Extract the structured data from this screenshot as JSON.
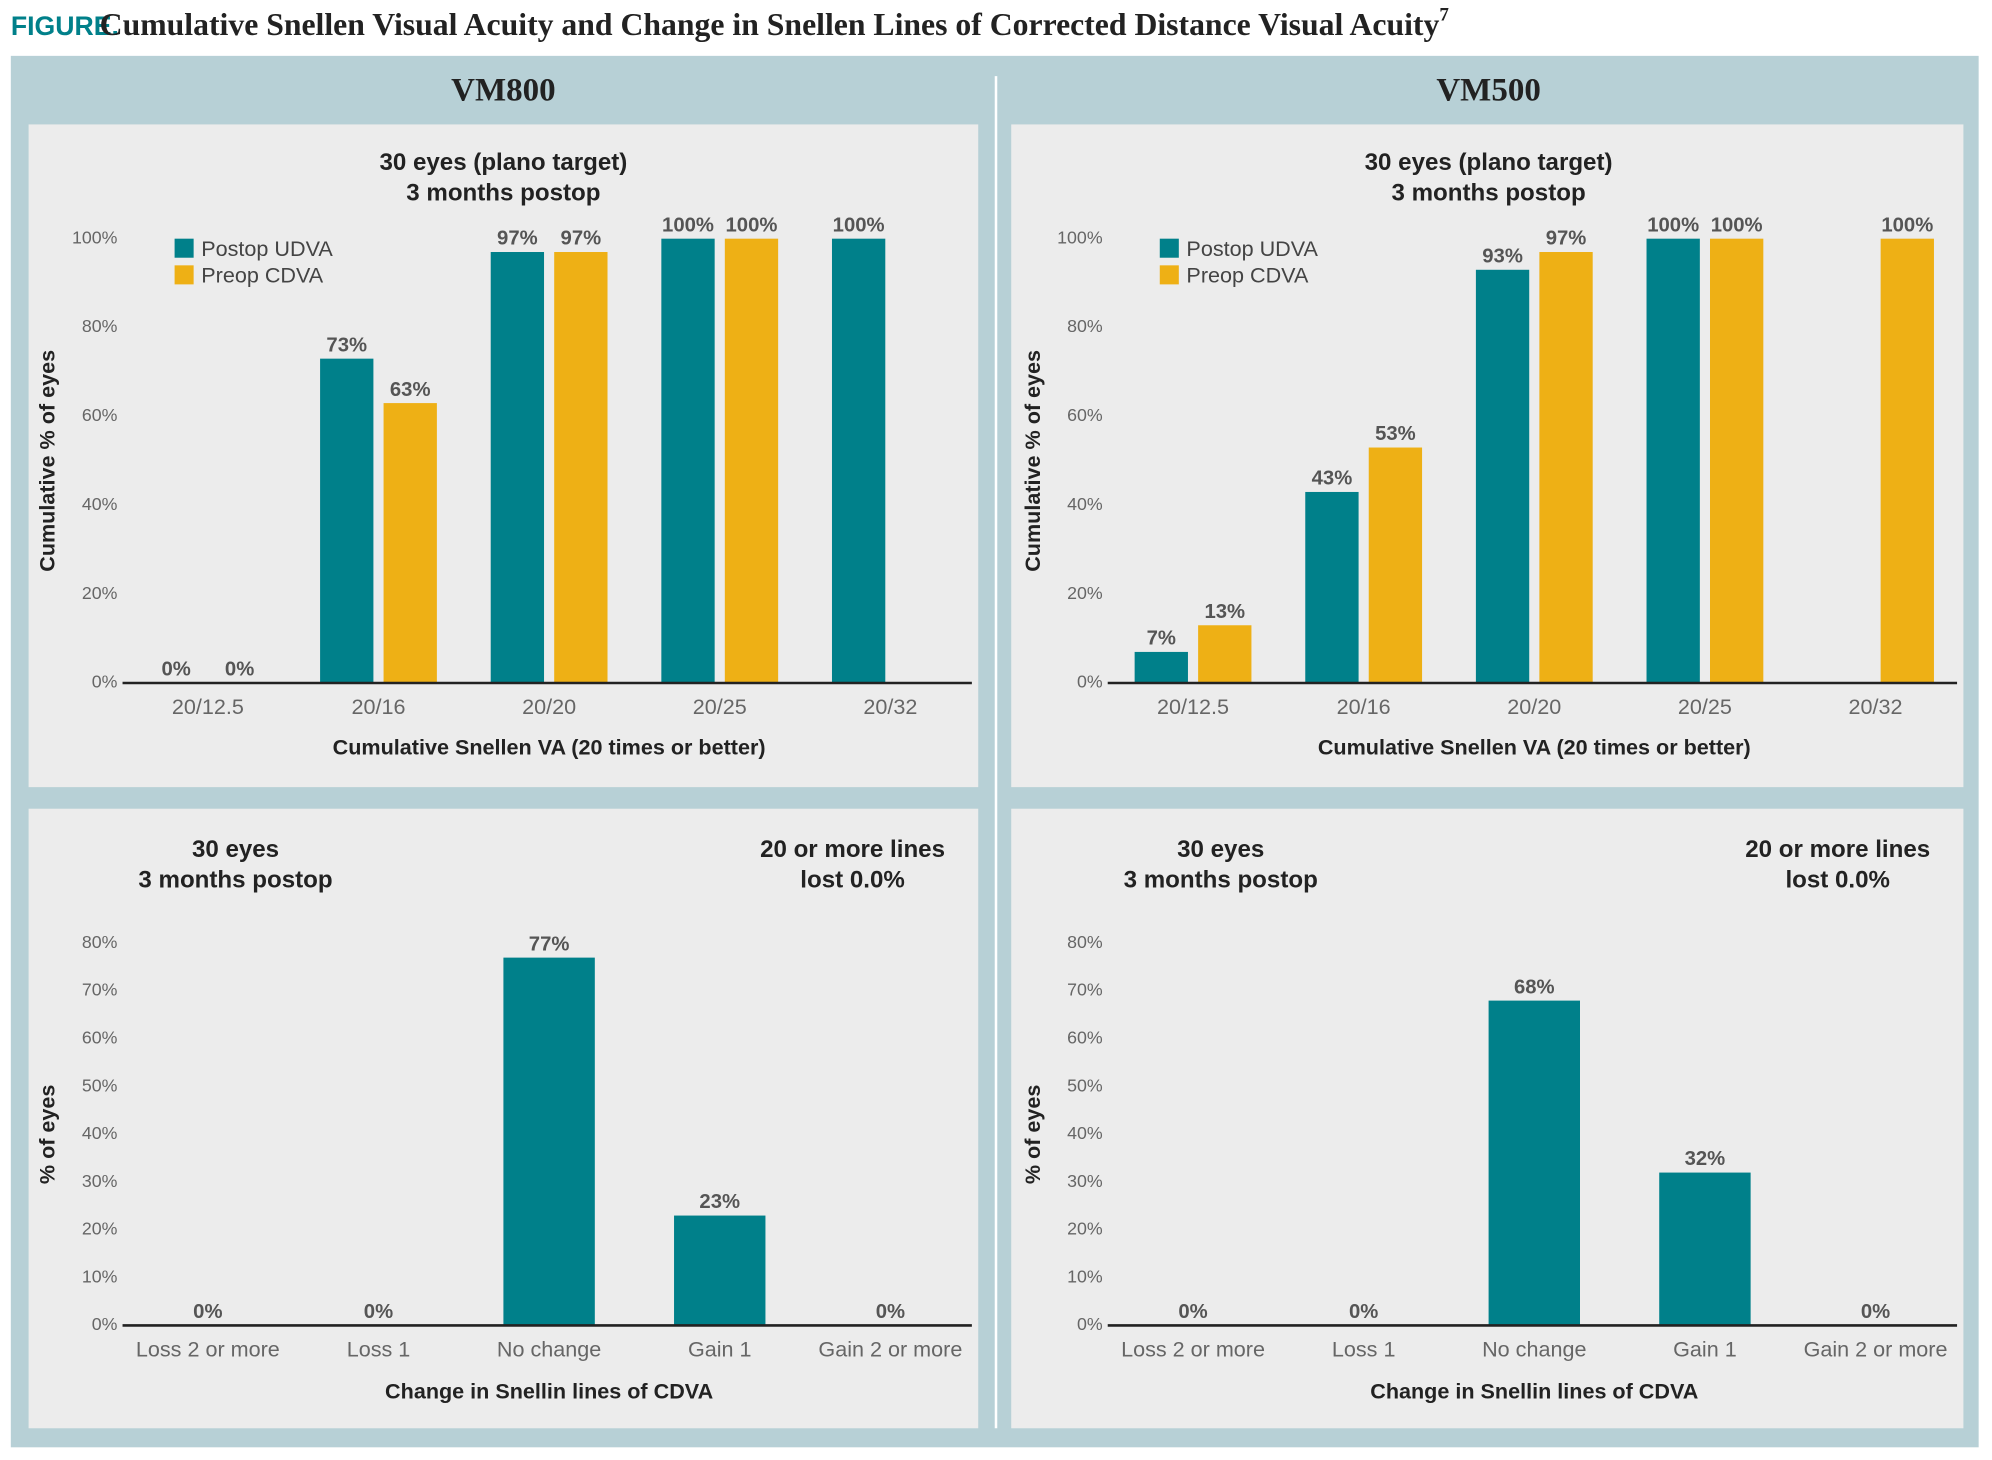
{
  "figure_label": "FIGURE.",
  "title": "Cumulative Snellen Visual Acuity and Change in Snellen Lines of Corrected Distance Visual Acuity",
  "title_ref": "7",
  "panels": [
    "VM800",
    "VM500"
  ],
  "chart_data": [
    {
      "type": "bar",
      "title": [
        "30 eyes (plano target)",
        "3 months postop"
      ],
      "x_label": "Cumulative Snellen VA (20 times or better)",
      "y_label": "Cumulative % of eyes",
      "categories": [
        "20/12.5",
        "20/16",
        "20/20",
        "20/25",
        "20/32"
      ],
      "series": [
        {
          "name": "Postop UDVA",
          "color": "#00808a",
          "values": [
            0,
            73,
            97,
            100,
            100
          ],
          "value_labels": [
            "0%",
            "73%",
            "97%",
            "100%",
            "100%"
          ]
        },
        {
          "name": "Preop CDVA",
          "color": "#eeb015",
          "values": [
            0,
            63,
            97,
            100,
            null
          ],
          "value_labels": [
            "0%",
            "63%",
            "97%",
            "100%",
            null
          ]
        }
      ],
      "ylim": [
        0,
        100
      ],
      "yticks": [
        {
          "value": 0,
          "label": "0%"
        },
        {
          "value": 20,
          "label": "20%"
        },
        {
          "value": 40,
          "label": "40%"
        },
        {
          "value": 60,
          "label": "60%"
        },
        {
          "value": 80,
          "label": "80%"
        },
        {
          "value": 100,
          "label": "100%"
        }
      ],
      "legend": "upper left"
    },
    {
      "type": "bar",
      "title": [
        "30 eyes (plano target)",
        "3 months postop"
      ],
      "x_label": "Cumulative Snellen VA (20 times or better)",
      "y_label": "Cumulative % of eyes",
      "categories": [
        "20/12.5",
        "20/16",
        "20/20",
        "20/25",
        "20/32"
      ],
      "series": [
        {
          "name": "Postop UDVA",
          "color": "#00808a",
          "values": [
            7,
            43,
            93,
            100,
            null
          ],
          "value_labels": [
            "7%",
            "43%",
            "93%",
            "100%",
            null
          ]
        },
        {
          "name": "Preop CDVA",
          "color": "#eeb015",
          "values": [
            13,
            53,
            97,
            100,
            100
          ],
          "value_labels": [
            "13%",
            "53%",
            "97%",
            "100%",
            "100%"
          ]
        }
      ],
      "ylim": [
        0,
        100
      ],
      "yticks": [
        {
          "value": 0,
          "label": "0%"
        },
        {
          "value": 20,
          "label": "20%"
        },
        {
          "value": 40,
          "label": "40%"
        },
        {
          "value": 60,
          "label": "60%"
        },
        {
          "value": 80,
          "label": "80%"
        },
        {
          "value": 100,
          "label": "100%"
        }
      ],
      "legend": "upper left"
    },
    {
      "type": "bar",
      "title": [
        "30 eyes",
        "3 months postop"
      ],
      "annotation": [
        "20 or more lines",
        "lost 0.0%"
      ],
      "x_label": "Change in Snellin lines of CDVA",
      "y_label": "% of eyes",
      "categories": [
        "Loss 2 or more",
        "Loss 1",
        "No change",
        "Gain 1",
        "Gain 2 or more"
      ],
      "values": [
        0,
        0,
        77,
        23,
        0
      ],
      "value_labels": [
        "0%",
        "0%",
        "77%",
        "23%",
        "0%"
      ],
      "color": "#00808a",
      "ylim": [
        0,
        80
      ],
      "yticks": [
        {
          "value": 0,
          "label": "0%"
        },
        {
          "value": 10,
          "label": "10%"
        },
        {
          "value": 20,
          "label": "20%"
        },
        {
          "value": 30,
          "label": "30%"
        },
        {
          "value": 40,
          "label": "40%"
        },
        {
          "value": 50,
          "label": "50%"
        },
        {
          "value": 60,
          "label": "60%"
        },
        {
          "value": 70,
          "label": "70%"
        },
        {
          "value": 80,
          "label": "80%"
        }
      ]
    },
    {
      "type": "bar",
      "title": [
        "30 eyes",
        "3 months postop"
      ],
      "annotation": [
        "20 or more lines",
        "lost 0.0%"
      ],
      "x_label": "Change in Snellin lines of CDVA",
      "y_label": "% of eyes",
      "categories": [
        "Loss 2 or more",
        "Loss 1",
        "No change",
        "Gain 1",
        "Gain 2 or more"
      ],
      "values": [
        0,
        0,
        68,
        32,
        0
      ],
      "value_labels": [
        "0%",
        "0%",
        "68%",
        "32%",
        "0%"
      ],
      "color": "#00808a",
      "ylim": [
        0,
        80
      ],
      "yticks": [
        {
          "value": 0,
          "label": "0%"
        },
        {
          "value": 10,
          "label": "10%"
        },
        {
          "value": 20,
          "label": "20%"
        },
        {
          "value": 30,
          "label": "30%"
        },
        {
          "value": 40,
          "label": "40%"
        },
        {
          "value": 50,
          "label": "50%"
        },
        {
          "value": 60,
          "label": "60%"
        },
        {
          "value": 70,
          "label": "70%"
        },
        {
          "value": 80,
          "label": "80%"
        }
      ]
    }
  ]
}
